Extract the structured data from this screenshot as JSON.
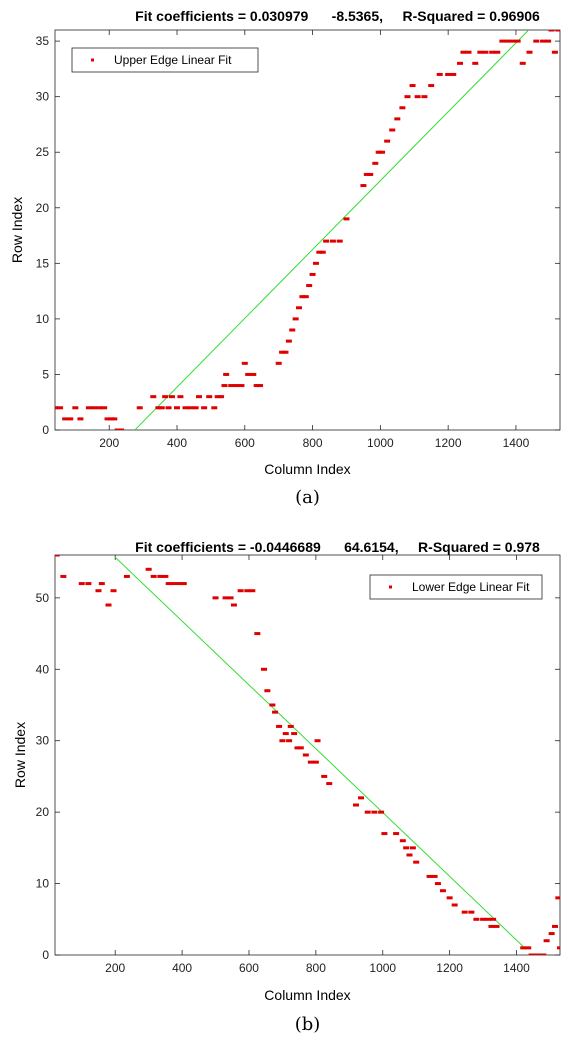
{
  "chart_data": [
    {
      "type": "scatter",
      "title": "Fit coefficients = 0.030979      -8.5365,     R-Squared = 0.96906",
      "xlabel": "Column Index",
      "ylabel": "Row Index",
      "caption": "(a)",
      "xlim": [
        40,
        1530
      ],
      "ylim": [
        0,
        36
      ],
      "xticks": [
        200,
        400,
        600,
        800,
        1000,
        1200,
        1400
      ],
      "yticks": [
        0,
        5,
        10,
        15,
        20,
        25,
        30,
        35
      ],
      "grid": false,
      "legend_position": "top-left",
      "legend": "Upper Edge Linear Fit",
      "fit": {
        "slope": 0.030979,
        "intercept": -8.5365,
        "x_range": [
          275,
          1530
        ]
      },
      "colors": {
        "points": "#e00000",
        "fit": "#33dd33"
      },
      "points": [
        [
          40,
          2
        ],
        [
          55,
          2
        ],
        [
          70,
          1
        ],
        [
          85,
          1
        ],
        [
          100,
          2
        ],
        [
          115,
          1
        ],
        [
          140,
          2
        ],
        [
          155,
          2
        ],
        [
          170,
          2
        ],
        [
          185,
          2
        ],
        [
          195,
          1
        ],
        [
          205,
          1
        ],
        [
          215,
          1
        ],
        [
          225,
          0
        ],
        [
          235,
          0
        ],
        [
          290,
          2
        ],
        [
          330,
          3
        ],
        [
          345,
          2
        ],
        [
          355,
          2
        ],
        [
          365,
          3
        ],
        [
          375,
          2
        ],
        [
          385,
          3
        ],
        [
          400,
          2
        ],
        [
          410,
          3
        ],
        [
          425,
          2
        ],
        [
          440,
          2
        ],
        [
          455,
          2
        ],
        [
          465,
          3
        ],
        [
          480,
          2
        ],
        [
          495,
          3
        ],
        [
          510,
          2
        ],
        [
          520,
          3
        ],
        [
          530,
          3
        ],
        [
          540,
          4
        ],
        [
          545,
          5
        ],
        [
          560,
          4
        ],
        [
          575,
          4
        ],
        [
          590,
          4
        ],
        [
          600,
          6
        ],
        [
          610,
          5
        ],
        [
          625,
          5
        ],
        [
          635,
          4
        ],
        [
          645,
          4
        ],
        [
          700,
          6
        ],
        [
          710,
          7
        ],
        [
          720,
          7
        ],
        [
          730,
          8
        ],
        [
          740,
          9
        ],
        [
          750,
          10
        ],
        [
          760,
          11
        ],
        [
          770,
          12
        ],
        [
          780,
          12
        ],
        [
          790,
          13
        ],
        [
          800,
          14
        ],
        [
          810,
          15
        ],
        [
          820,
          16
        ],
        [
          830,
          16
        ],
        [
          840,
          17
        ],
        [
          860,
          17
        ],
        [
          880,
          17
        ],
        [
          900,
          19
        ],
        [
          950,
          22
        ],
        [
          960,
          23
        ],
        [
          970,
          23
        ],
        [
          985,
          24
        ],
        [
          995,
          25
        ],
        [
          1005,
          25
        ],
        [
          1020,
          26
        ],
        [
          1035,
          27
        ],
        [
          1050,
          28
        ],
        [
          1065,
          29
        ],
        [
          1080,
          30
        ],
        [
          1095,
          31
        ],
        [
          1110,
          30
        ],
        [
          1130,
          30
        ],
        [
          1150,
          31
        ],
        [
          1175,
          32
        ],
        [
          1200,
          32
        ],
        [
          1215,
          32
        ],
        [
          1235,
          33
        ],
        [
          1245,
          34
        ],
        [
          1260,
          34
        ],
        [
          1280,
          33
        ],
        [
          1295,
          34
        ],
        [
          1310,
          34
        ],
        [
          1330,
          34
        ],
        [
          1345,
          34
        ],
        [
          1360,
          35
        ],
        [
          1375,
          35
        ],
        [
          1390,
          35
        ],
        [
          1405,
          35
        ],
        [
          1420,
          33
        ],
        [
          1440,
          34
        ],
        [
          1460,
          35
        ],
        [
          1480,
          35
        ],
        [
          1495,
          35
        ],
        [
          1505,
          36
        ],
        [
          1515,
          34
        ],
        [
          1525,
          36
        ]
      ]
    },
    {
      "type": "scatter",
      "title": "Fit coefficients = -0.0446689      64.6154,     R-Squared = 0.978",
      "xlabel": "Column Index",
      "ylabel": "Row Index",
      "caption": "(b)",
      "xlim": [
        20,
        1530
      ],
      "ylim": [
        0,
        56
      ],
      "xticks": [
        200,
        400,
        600,
        800,
        1000,
        1200,
        1400
      ],
      "yticks": [
        0,
        10,
        20,
        30,
        40,
        50
      ],
      "grid": false,
      "legend_position": "top-right",
      "legend": "Lower Edge Linear Fit",
      "fit": {
        "slope": -0.0446689,
        "intercept": 64.6154,
        "x_range": [
          200,
          1425
        ]
      },
      "colors": {
        "points": "#e00000",
        "fit": "#33dd33"
      },
      "points": [
        [
          25,
          56
        ],
        [
          45,
          53
        ],
        [
          100,
          52
        ],
        [
          120,
          52
        ],
        [
          150,
          51
        ],
        [
          160,
          52
        ],
        [
          180,
          49
        ],
        [
          195,
          51
        ],
        [
          235,
          53
        ],
        [
          300,
          54
        ],
        [
          315,
          53
        ],
        [
          335,
          53
        ],
        [
          350,
          53
        ],
        [
          360,
          52
        ],
        [
          375,
          52
        ],
        [
          390,
          52
        ],
        [
          405,
          52
        ],
        [
          500,
          50
        ],
        [
          530,
          50
        ],
        [
          545,
          50
        ],
        [
          555,
          49
        ],
        [
          575,
          51
        ],
        [
          595,
          51
        ],
        [
          610,
          51
        ],
        [
          625,
          45
        ],
        [
          645,
          40
        ],
        [
          655,
          37
        ],
        [
          670,
          35
        ],
        [
          678,
          34
        ],
        [
          690,
          32
        ],
        [
          700,
          30
        ],
        [
          710,
          31
        ],
        [
          720,
          30
        ],
        [
          725,
          32
        ],
        [
          735,
          31
        ],
        [
          745,
          29
        ],
        [
          755,
          29
        ],
        [
          770,
          28
        ],
        [
          785,
          27
        ],
        [
          800,
          27
        ],
        [
          805,
          30
        ],
        [
          825,
          25
        ],
        [
          840,
          24
        ],
        [
          920,
          21
        ],
        [
          935,
          22
        ],
        [
          955,
          20
        ],
        [
          975,
          20
        ],
        [
          995,
          20
        ],
        [
          1005,
          17
        ],
        [
          1040,
          17
        ],
        [
          1060,
          16
        ],
        [
          1070,
          15
        ],
        [
          1080,
          14
        ],
        [
          1090,
          15
        ],
        [
          1100,
          13
        ],
        [
          1140,
          11
        ],
        [
          1155,
          11
        ],
        [
          1165,
          10
        ],
        [
          1180,
          9
        ],
        [
          1200,
          8
        ],
        [
          1215,
          7
        ],
        [
          1245,
          6
        ],
        [
          1265,
          6
        ],
        [
          1280,
          5
        ],
        [
          1300,
          5
        ],
        [
          1315,
          5
        ],
        [
          1325,
          4
        ],
        [
          1330,
          5
        ],
        [
          1340,
          4
        ],
        [
          1420,
          1
        ],
        [
          1435,
          1
        ],
        [
          1445,
          0
        ],
        [
          1455,
          0
        ],
        [
          1465,
          0
        ],
        [
          1480,
          0
        ],
        [
          1490,
          2
        ],
        [
          1505,
          3
        ],
        [
          1515,
          4
        ],
        [
          1525,
          8
        ],
        [
          1530,
          1
        ]
      ]
    }
  ]
}
